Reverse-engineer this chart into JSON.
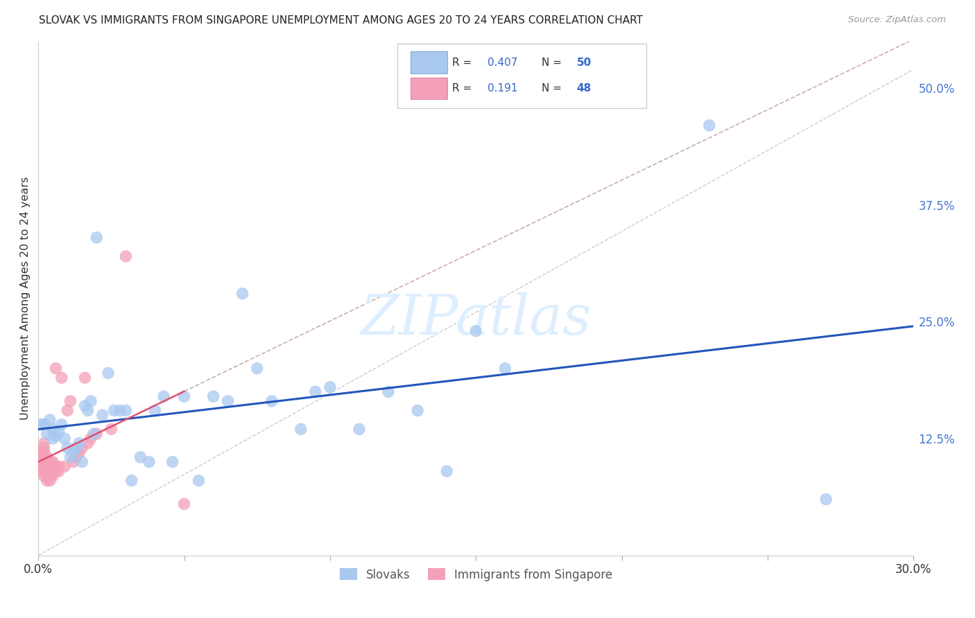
{
  "title": "SLOVAK VS IMMIGRANTS FROM SINGAPORE UNEMPLOYMENT AMONG AGES 20 TO 24 YEARS CORRELATION CHART",
  "source": "Source: ZipAtlas.com",
  "ylabel": "Unemployment Among Ages 20 to 24 years",
  "xlim": [
    0.0,
    0.3
  ],
  "ylim": [
    0.0,
    0.55
  ],
  "yticks": [
    0.0,
    0.125,
    0.25,
    0.375,
    0.5
  ],
  "ytick_labels": [
    "",
    "12.5%",
    "25.0%",
    "37.5%",
    "50.0%"
  ],
  "xticks": [
    0.0,
    0.05,
    0.1,
    0.15,
    0.2,
    0.25,
    0.3
  ],
  "xtick_labels": [
    "0.0%",
    "",
    "",
    "",
    "",
    "",
    "30.0%"
  ],
  "R_slovak": 0.407,
  "N_slovak": 50,
  "R_singapore": 0.191,
  "N_singapore": 48,
  "slovak_color": "#a8c8f0",
  "singapore_color": "#f4a0b8",
  "trendline_slovak_color": "#2255bb",
  "trendline_singapore_color": "#e05070",
  "watermark_color": "#ddeeff",
  "slovaks_x": [
    0.001,
    0.002,
    0.003,
    0.004,
    0.005,
    0.005,
    0.006,
    0.007,
    0.008,
    0.009,
    0.01,
    0.011,
    0.012,
    0.013,
    0.014,
    0.015,
    0.016,
    0.017,
    0.018,
    0.019,
    0.02,
    0.022,
    0.024,
    0.026,
    0.028,
    0.03,
    0.032,
    0.035,
    0.038,
    0.04,
    0.043,
    0.046,
    0.05,
    0.055,
    0.06,
    0.065,
    0.07,
    0.075,
    0.08,
    0.09,
    0.095,
    0.1,
    0.11,
    0.12,
    0.13,
    0.14,
    0.15,
    0.16,
    0.23,
    0.27
  ],
  "slovaks_y": [
    0.14,
    0.14,
    0.13,
    0.145,
    0.135,
    0.125,
    0.128,
    0.132,
    0.14,
    0.125,
    0.115,
    0.105,
    0.11,
    0.115,
    0.12,
    0.1,
    0.16,
    0.155,
    0.165,
    0.13,
    0.34,
    0.15,
    0.195,
    0.155,
    0.155,
    0.155,
    0.08,
    0.105,
    0.1,
    0.155,
    0.17,
    0.1,
    0.17,
    0.08,
    0.17,
    0.165,
    0.28,
    0.2,
    0.165,
    0.135,
    0.175,
    0.18,
    0.135,
    0.175,
    0.155,
    0.09,
    0.24,
    0.2,
    0.46,
    0.06
  ],
  "singapore_x": [
    0.001,
    0.001,
    0.001,
    0.001,
    0.001,
    0.002,
    0.002,
    0.002,
    0.002,
    0.002,
    0.002,
    0.002,
    0.002,
    0.003,
    0.003,
    0.003,
    0.003,
    0.003,
    0.003,
    0.004,
    0.004,
    0.004,
    0.004,
    0.004,
    0.005,
    0.005,
    0.005,
    0.005,
    0.006,
    0.006,
    0.006,
    0.007,
    0.007,
    0.008,
    0.009,
    0.01,
    0.011,
    0.012,
    0.013,
    0.014,
    0.015,
    0.016,
    0.017,
    0.018,
    0.02,
    0.025,
    0.03,
    0.05
  ],
  "singapore_y": [
    0.09,
    0.095,
    0.1,
    0.105,
    0.11,
    0.085,
    0.09,
    0.095,
    0.1,
    0.105,
    0.11,
    0.115,
    0.12,
    0.08,
    0.085,
    0.09,
    0.095,
    0.1,
    0.105,
    0.08,
    0.085,
    0.09,
    0.095,
    0.1,
    0.085,
    0.09,
    0.095,
    0.1,
    0.09,
    0.095,
    0.2,
    0.09,
    0.095,
    0.19,
    0.095,
    0.155,
    0.165,
    0.1,
    0.105,
    0.11,
    0.115,
    0.19,
    0.12,
    0.125,
    0.13,
    0.135,
    0.32,
    0.055
  ]
}
